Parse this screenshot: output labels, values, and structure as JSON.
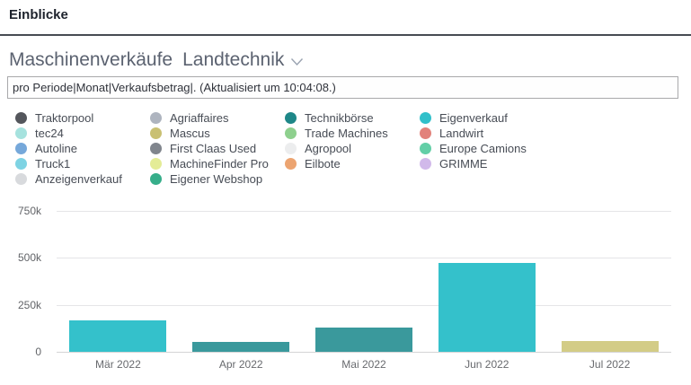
{
  "header": {
    "title": "Einblicke"
  },
  "report": {
    "title": "Maschinenverkäufe",
    "subtitle": "Landtechnik",
    "dropdown_icon": "chevron-down"
  },
  "query_box": {
    "value": "pro Periode|Monat|Verkaufsbetrag|. (Aktualisiert um 10:04:08.)"
  },
  "chart_data": {
    "type": "bar",
    "title": "Maschinenverkäufe Landtechnik",
    "xlabel": "",
    "ylabel": "",
    "categories": [
      "Mär 2022",
      "Apr 2022",
      "Mai 2022",
      "Jun 2022",
      "Jul 2022"
    ],
    "values": [
      165000,
      52000,
      127000,
      475000,
      57000
    ],
    "bar_colors": [
      "#34c1cb",
      "#3a999c",
      "#3a999c",
      "#34c1cb",
      "#d3cc86"
    ],
    "ylim": [
      0,
      800000
    ],
    "yticks": {
      "values": [
        0,
        250000,
        500000,
        750000
      ],
      "labels": [
        "0",
        "250k",
        "500k",
        "750k"
      ]
    },
    "grid": true,
    "legend_position": "top",
    "legend": {
      "columns": [
        {
          "items": [
            {
              "label": "Traktorpool",
              "color": "#54565c"
            },
            {
              "label": "tec24",
              "color": "#a6e2de"
            },
            {
              "label": "Autoline",
              "color": "#76a8da"
            },
            {
              "label": "Truck1",
              "color": "#7ed3e3"
            },
            {
              "label": "Anzeigenverkauf",
              "color": "#d8dadd"
            }
          ]
        },
        {
          "items": [
            {
              "label": "Agriaffaires",
              "color": "#aeb4bf"
            },
            {
              "label": "Mascus",
              "color": "#c9c072"
            },
            {
              "label": "First Claas Used",
              "color": "#80858d"
            },
            {
              "label": "MachineFinder Pro",
              "color": "#e4ec96"
            },
            {
              "label": "Eigener Webshop",
              "color": "#36ae8a"
            }
          ]
        },
        {
          "items": [
            {
              "label": "Technikbörse",
              "color": "#1e8788"
            },
            {
              "label": "Trade Machines",
              "color": "#8ed08e"
            },
            {
              "label": "Agropool",
              "color": "#ecedee"
            },
            {
              "label": "Eilbote",
              "color": "#eca471"
            }
          ]
        },
        {
          "items": [
            {
              "label": "Eigenverkauf",
              "color": "#31c0ca"
            },
            {
              "label": "Landwirt",
              "color": "#e2827b"
            },
            {
              "label": "Europe Camions",
              "color": "#63cfa7"
            },
            {
              "label": "GRIMME",
              "color": "#d1b9ea"
            }
          ]
        }
      ]
    }
  }
}
